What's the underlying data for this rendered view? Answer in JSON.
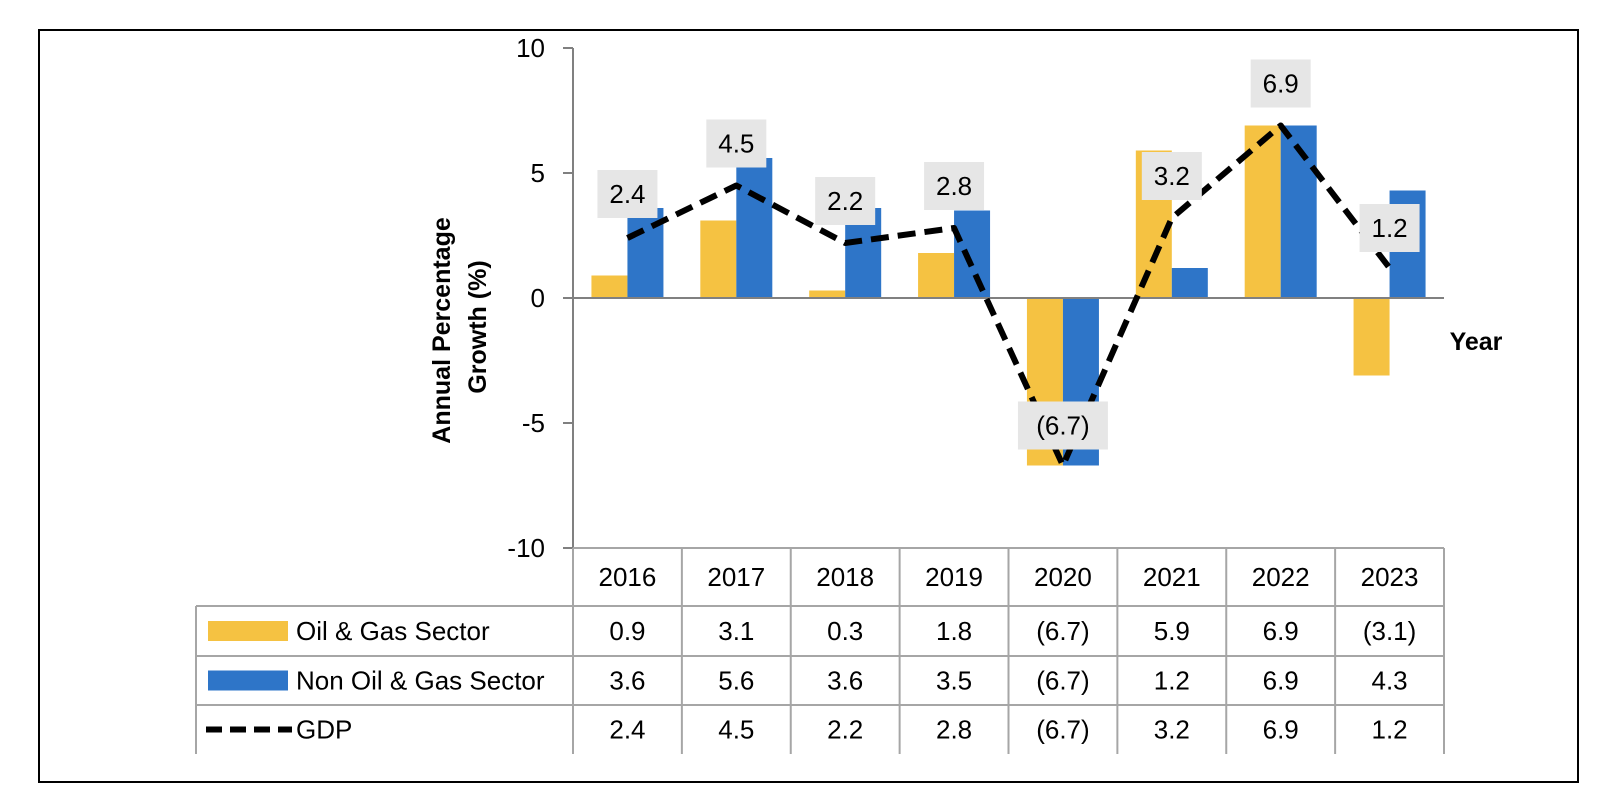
{
  "chart_data": {
    "type": "bar",
    "categories": [
      "2016",
      "2017",
      "2018",
      "2019",
      "2020",
      "2021",
      "2022",
      "2023"
    ],
    "series": [
      {
        "name": "Oil & Gas Sector",
        "kind": "bar",
        "color": "#F5C242",
        "values": [
          0.9,
          3.1,
          0.3,
          1.8,
          -6.7,
          5.9,
          6.9,
          -3.1
        ],
        "table_labels": [
          "0.9",
          "3.1",
          "0.3",
          "1.8",
          "(6.7)",
          "5.9",
          "6.9",
          "(3.1)"
        ]
      },
      {
        "name": "Non Oil & Gas Sector",
        "kind": "bar",
        "color": "#2E75C8",
        "values": [
          3.6,
          5.6,
          3.6,
          3.5,
          -6.7,
          1.2,
          6.9,
          4.3
        ],
        "table_labels": [
          "3.6",
          "5.6",
          "3.6",
          "3.5",
          "(6.7)",
          "1.2",
          "6.9",
          "4.3"
        ]
      },
      {
        "name": "GDP",
        "kind": "line-dashed",
        "color": "#000000",
        "values": [
          2.4,
          4.5,
          2.2,
          2.8,
          -6.7,
          3.2,
          6.9,
          1.2
        ],
        "table_labels": [
          "2.4",
          "4.5",
          "2.2",
          "2.8",
          "(6.7)",
          "3.2",
          "6.9",
          "1.2"
        ],
        "data_labels": [
          "2.4",
          "4.5",
          "2.2",
          "2.8",
          "(6.7)",
          "3.2",
          "6.9",
          "1.2"
        ]
      }
    ],
    "ylabel": "Annual Percentage Growth (%)",
    "ylabel_lines": [
      "Annual Percentage",
      "Growth (%)"
    ],
    "xlabel": "Year",
    "ylim": [
      -10,
      10
    ],
    "yticks": [
      "10",
      "5",
      "0",
      "-5",
      "-10"
    ],
    "ytick_values": [
      10,
      5,
      0,
      -5,
      -10
    ],
    "data_table": true,
    "grid": false,
    "label_box_color": "#E6E6E6"
  }
}
